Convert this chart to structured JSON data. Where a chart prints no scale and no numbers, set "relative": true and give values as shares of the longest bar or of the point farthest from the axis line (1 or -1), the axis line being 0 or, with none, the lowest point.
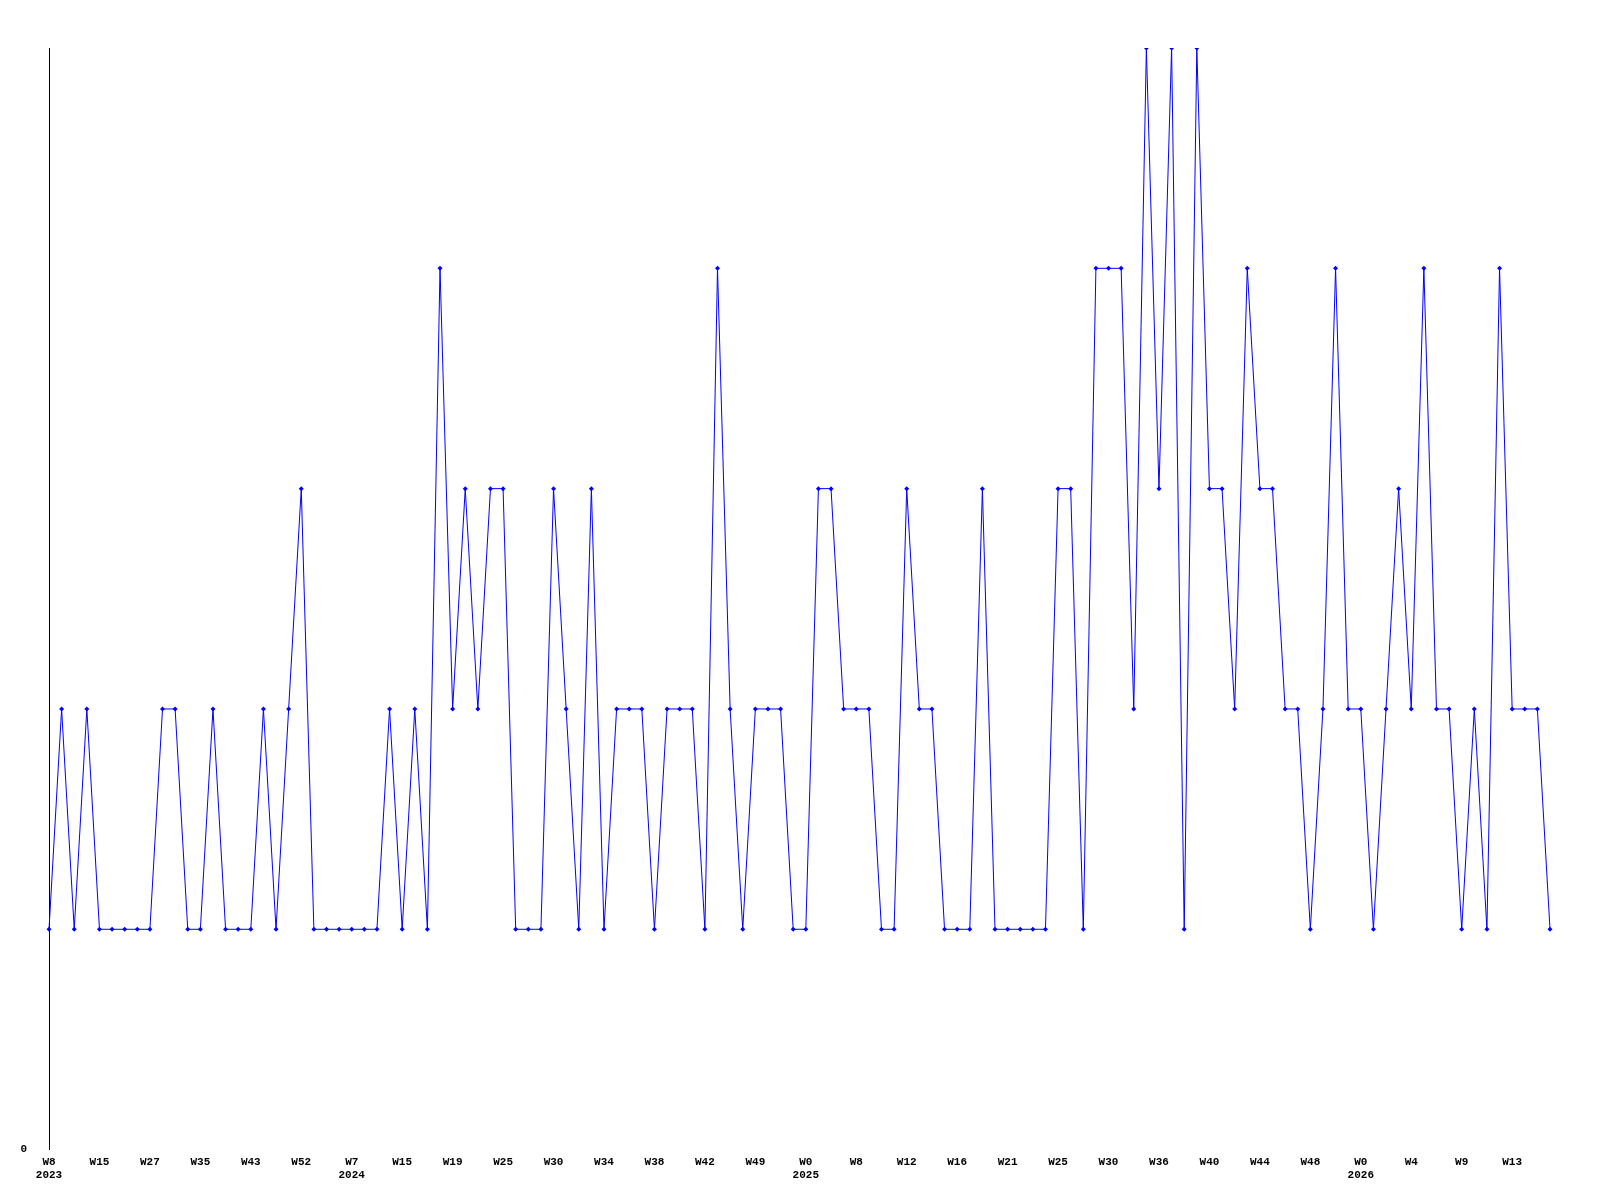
{
  "chart_data": {
    "type": "line",
    "relative": true,
    "color": "#0000ff",
    "marker": "diamond",
    "line_style": "solid",
    "grid": false,
    "legend": false,
    "annotations": [
      "0"
    ],
    "categories": [
      "W8\n2023",
      null,
      null,
      null,
      "W15",
      null,
      null,
      null,
      "W27",
      null,
      null,
      null,
      "W35",
      null,
      null,
      null,
      "W43",
      null,
      null,
      null,
      "W52",
      null,
      null,
      null,
      "W7\n2024",
      null,
      null,
      null,
      "W15",
      null,
      null,
      null,
      "W19",
      null,
      null,
      null,
      "W25",
      null,
      null,
      null,
      "W30",
      null,
      null,
      null,
      "W34",
      null,
      null,
      null,
      "W38",
      null,
      null,
      null,
      "W42",
      null,
      null,
      null,
      "W49",
      null,
      null,
      null,
      "W0\n2025",
      null,
      null,
      null,
      "W8",
      null,
      null,
      null,
      "W12",
      null,
      null,
      null,
      "W16",
      null,
      null,
      null,
      "W21",
      null,
      null,
      null,
      "W25",
      null,
      null,
      null,
      "W30",
      null,
      null,
      null,
      "W36",
      null,
      null,
      null,
      "W40",
      null,
      null,
      null,
      "W44",
      null,
      null,
      null,
      "W48",
      null,
      null,
      null,
      "W0\n2026",
      null,
      null,
      null,
      "W4",
      null,
      null,
      null,
      "W9",
      null,
      null,
      null,
      "W13",
      null,
      null,
      null
    ],
    "values": [
      0.2,
      0.4,
      0.2,
      0.4,
      0.2,
      0.2,
      0.2,
      0.2,
      0.2,
      0.4,
      0.4,
      0.2,
      0.2,
      0.4,
      0.2,
      0.2,
      0.2,
      0.4,
      0.2,
      0.4,
      0.6,
      0.2,
      0.2,
      0.2,
      0.2,
      0.2,
      0.2,
      0.4,
      0.2,
      0.4,
      0.2,
      0.8,
      0.4,
      0.6,
      0.4,
      0.6,
      0.6,
      0.2,
      0.2,
      0.2,
      0.6,
      0.4,
      0.2,
      0.6,
      0.2,
      0.4,
      0.4,
      0.4,
      0.2,
      0.4,
      0.4,
      0.4,
      0.2,
      0.8,
      0.4,
      0.2,
      0.4,
      0.4,
      0.4,
      0.2,
      0.2,
      0.6,
      0.6,
      0.4,
      0.4,
      0.4,
      0.2,
      0.2,
      0.6,
      0.4,
      0.4,
      0.2,
      0.2,
      0.2,
      0.6,
      0.2,
      0.2,
      0.2,
      0.2,
      0.2,
      0.6,
      0.6,
      0.2,
      0.8,
      0.8,
      0.8,
      0.4,
      1,
      0.6,
      1,
      0.2,
      1,
      0.6,
      0.6,
      0.4,
      0.8,
      0.6,
      0.6,
      0.4,
      0.4,
      0.2,
      0.4,
      0.8,
      0.4,
      0.4,
      0.2,
      0.4,
      0.6,
      0.4,
      0.8,
      0.4,
      0.4,
      0.2,
      0.4,
      0.2,
      0.8,
      0.4,
      0.4,
      0.4,
      0.2
    ]
  }
}
